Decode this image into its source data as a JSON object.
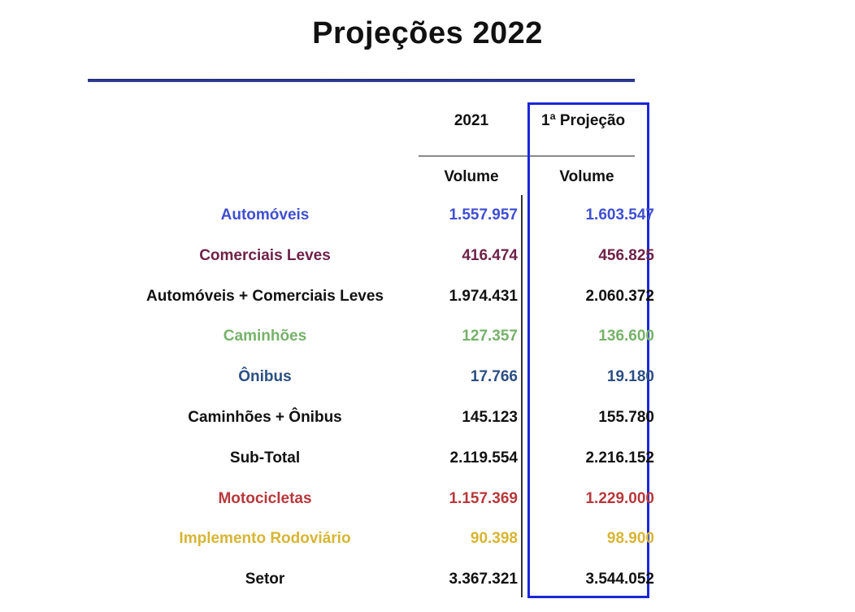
{
  "title": "Projeções 2022",
  "columns": {
    "year": "2021",
    "projection": "1ª Projeção",
    "volume_1": "Volume",
    "volume_2": "Volume"
  },
  "rows": [
    {
      "label": "Automóveis",
      "v2021": "1.557.957",
      "proj": "1.603.547",
      "color": "#3f4fd1"
    },
    {
      "label": "Comerciais Leves",
      "v2021": "416.474",
      "proj": "456.825",
      "color": "#6e2248"
    },
    {
      "label": "Automóveis + Comerciais Leves",
      "v2021": "1.974.431",
      "proj": "2.060.372",
      "color": "#111111"
    },
    {
      "label": "Caminhões",
      "v2021": "127.357",
      "proj": "136.600",
      "color": "#76b26a"
    },
    {
      "label": "Ônibus",
      "v2021": "17.766",
      "proj": "19.180",
      "color": "#2a4f82"
    },
    {
      "label": "Caminhões + Ônibus",
      "v2021": "145.123",
      "proj": "155.780",
      "color": "#111111"
    },
    {
      "label": "Sub-Total",
      "v2021": "2.119.554",
      "proj": "2.216.152",
      "color": "#111111"
    },
    {
      "label": "Motocicletas",
      "v2021": "1.157.369",
      "proj": "1.229.000",
      "color": "#b8383b"
    },
    {
      "label": "Implemento Rodoviário",
      "v2021": "90.398",
      "proj": "98.900",
      "color": "#d8b533"
    },
    {
      "label": "Setor",
      "v2021": "3.367.321",
      "proj": "3.544.052",
      "color": "#111111"
    }
  ]
}
